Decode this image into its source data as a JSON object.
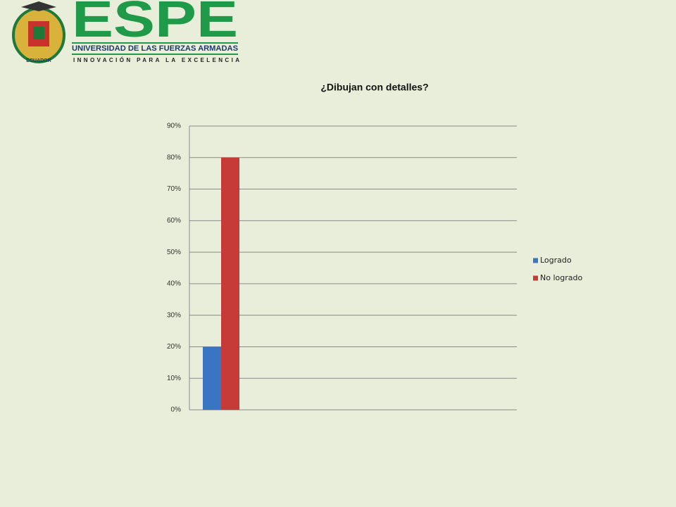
{
  "logo": {
    "name": "ESPE",
    "university": "UNIVERSIDAD DE LAS FUERZAS ARMADAS",
    "motto": "INNOVACIÓN PARA LA EXCELENCIA",
    "country": "ECUADOR"
  },
  "chart_data": {
    "type": "bar",
    "title": "¿Dibujan con detalles?",
    "categories": [
      null
    ],
    "series": [
      {
        "name": "Logrado",
        "color": "#3a75c4",
        "values": [
          20
        ]
      },
      {
        "name": "No logrado",
        "color": "#c63a38",
        "values": [
          80
        ]
      }
    ],
    "ylim": [
      0,
      90
    ],
    "yticks": [
      {
        "value": 0,
        "label": "0%"
      },
      {
        "value": 10,
        "label": "10%"
      },
      {
        "value": 20,
        "label": "20%"
      },
      {
        "value": 30,
        "label": "30%"
      },
      {
        "value": 40,
        "label": "40%"
      },
      {
        "value": 50,
        "label": "50%"
      },
      {
        "value": 60,
        "label": "60%"
      },
      {
        "value": 70,
        "label": "70%"
      },
      {
        "value": 80,
        "label": "80%"
      },
      {
        "value": 90,
        "label": "90%"
      }
    ],
    "grid": true,
    "legend": "right"
  }
}
